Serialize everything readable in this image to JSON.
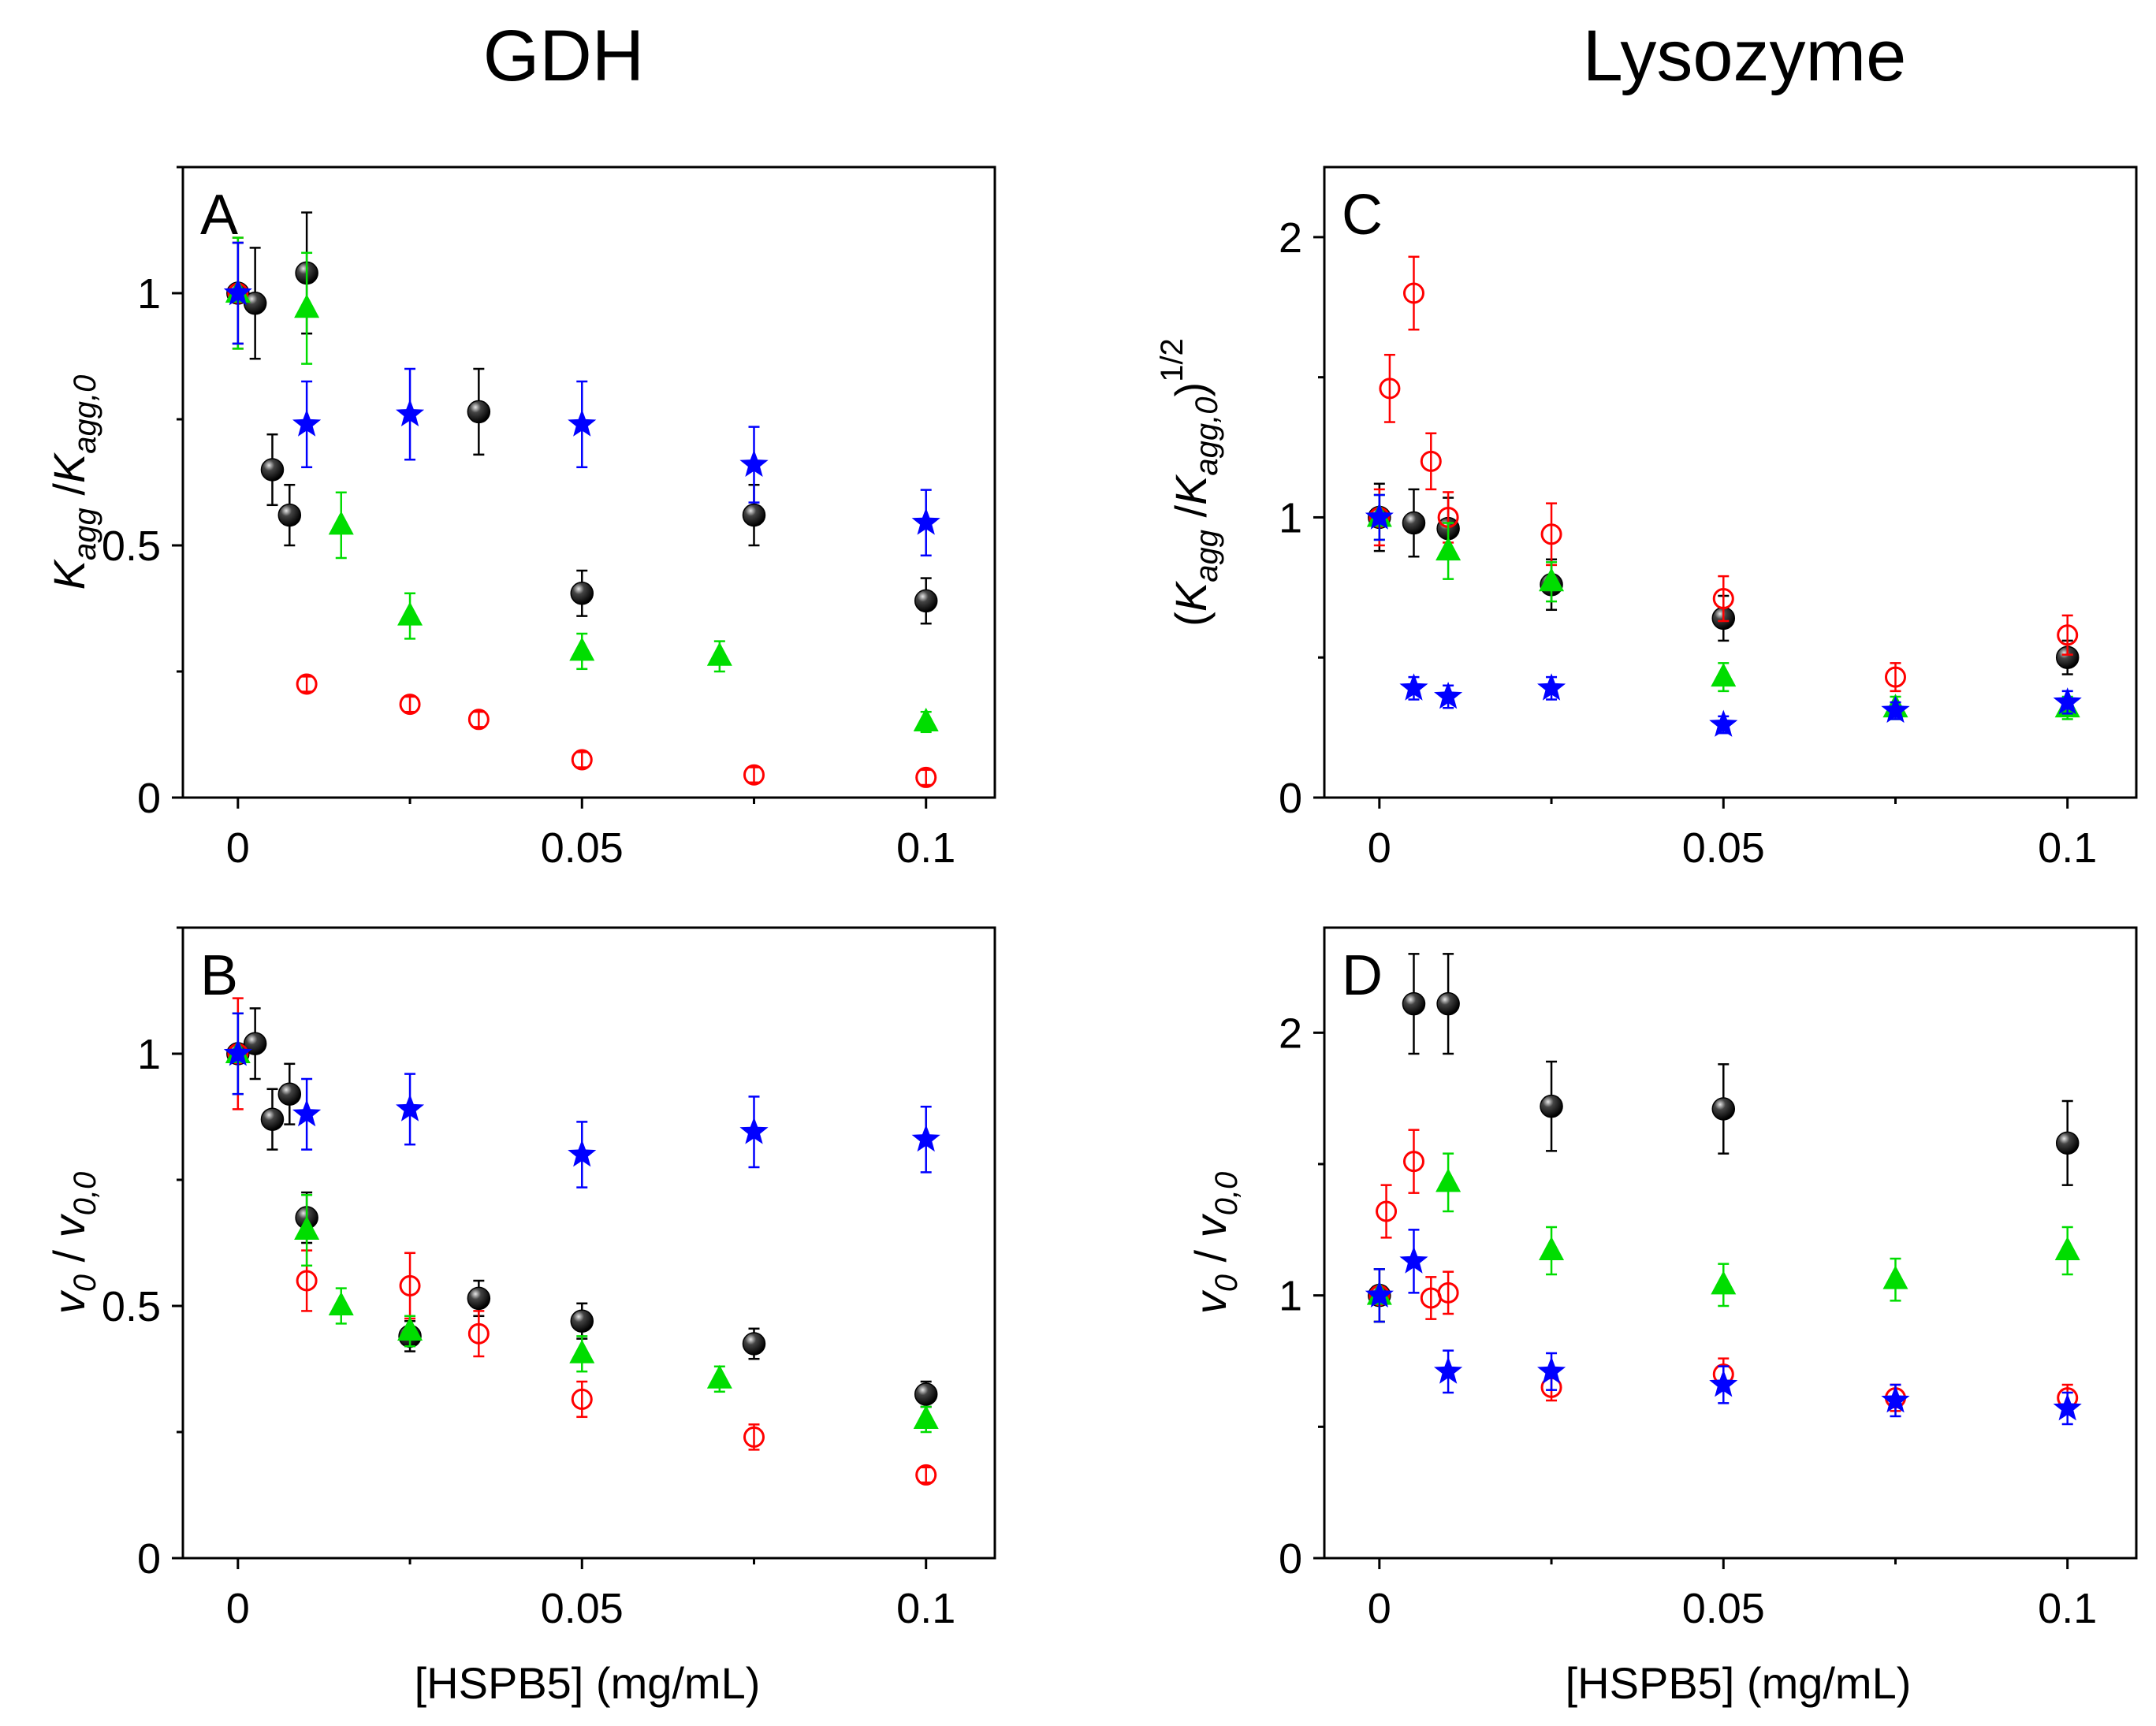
{
  "figure": {
    "col_titles": [
      "GDH",
      "Lysozyme"
    ],
    "x_label": "[HSPB5] (mg/mL)"
  },
  "chart_data": [
    {
      "id": "A",
      "type": "scatter",
      "title": "A",
      "xlabel": "[HSPB5] (mg/mL)",
      "ylabel": "Kagg / Kagg,0",
      "ylabel_parts": {
        "main": "K",
        "sub": "agg",
        "sep": " /",
        "main2": "K",
        "sub2": "agg,0"
      },
      "xlim": [
        -0.008,
        0.11
      ],
      "ylim": [
        0,
        1.25
      ],
      "xticks": [
        0,
        0.05,
        0.1
      ],
      "xtick_labels": [
        "0",
        "0.05",
        "0.1"
      ],
      "yticks": [
        0,
        0.5,
        1
      ],
      "ytick_labels": [
        "0",
        "0.5",
        "1"
      ],
      "series": [
        {
          "name": "black",
          "marker": "sphere",
          "color": "#000000",
          "points": [
            {
              "x": 0,
              "y": 1.0,
              "err": 0.1
            },
            {
              "x": 0.0025,
              "y": 0.98,
              "err": 0.11
            },
            {
              "x": 0.005,
              "y": 0.65,
              "err": 0.07
            },
            {
              "x": 0.0075,
              "y": 0.56,
              "err": 0.06
            },
            {
              "x": 0.01,
              "y": 1.04,
              "err": 0.12
            },
            {
              "x": 0.035,
              "y": 0.765,
              "err": 0.085
            },
            {
              "x": 0.05,
              "y": 0.405,
              "err": 0.045
            },
            {
              "x": 0.075,
              "y": 0.56,
              "err": 0.06
            },
            {
              "x": 0.1,
              "y": 0.39,
              "err": 0.045
            }
          ]
        },
        {
          "name": "red",
          "marker": "open-circle",
          "color": "#ff0000",
          "points": [
            {
              "x": 0,
              "y": 1.0,
              "err": 0.11
            },
            {
              "x": 0.01,
              "y": 0.225,
              "err": 0.015
            },
            {
              "x": 0.025,
              "y": 0.185,
              "err": 0.015
            },
            {
              "x": 0.035,
              "y": 0.155,
              "err": 0.015
            },
            {
              "x": 0.05,
              "y": 0.075,
              "err": 0.015
            },
            {
              "x": 0.075,
              "y": 0.045,
              "err": 0.015
            },
            {
              "x": 0.1,
              "y": 0.04,
              "err": 0.015
            }
          ]
        },
        {
          "name": "green",
          "marker": "triangle",
          "color": "#00dd00",
          "points": [
            {
              "x": 0,
              "y": 1.0,
              "err": 0.11
            },
            {
              "x": 0.01,
              "y": 0.97,
              "err": 0.11
            },
            {
              "x": 0.015,
              "y": 0.54,
              "err": 0.065
            },
            {
              "x": 0.025,
              "y": 0.36,
              "err": 0.045
            },
            {
              "x": 0.05,
              "y": 0.29,
              "err": 0.035
            },
            {
              "x": 0.07,
              "y": 0.28,
              "err": 0.03
            },
            {
              "x": 0.1,
              "y": 0.15,
              "err": 0.02
            }
          ]
        },
        {
          "name": "blue",
          "marker": "star",
          "color": "#0000ff",
          "points": [
            {
              "x": 0,
              "y": 1.0,
              "err": 0.1
            },
            {
              "x": 0.01,
              "y": 0.74,
              "err": 0.085
            },
            {
              "x": 0.025,
              "y": 0.76,
              "err": 0.09
            },
            {
              "x": 0.05,
              "y": 0.74,
              "err": 0.085
            },
            {
              "x": 0.075,
              "y": 0.66,
              "err": 0.075
            },
            {
              "x": 0.1,
              "y": 0.545,
              "err": 0.065
            }
          ]
        }
      ]
    },
    {
      "id": "B",
      "type": "scatter",
      "title": "B",
      "xlabel": "[HSPB5] (mg/mL)",
      "ylabel": "v0 / v0,0",
      "ylabel_parts": {
        "main": "v",
        "sub": "0",
        "sep": " / ",
        "main2": "v",
        "sub2": "0,0"
      },
      "xlim": [
        -0.008,
        0.11
      ],
      "ylim": [
        0,
        1.25
      ],
      "xticks": [
        0,
        0.05,
        0.1
      ],
      "xtick_labels": [
        "0",
        "0.05",
        "0.1"
      ],
      "yticks": [
        0,
        0.5,
        1
      ],
      "ytick_labels": [
        "0",
        "0.5",
        "1"
      ],
      "series": [
        {
          "name": "black",
          "marker": "sphere",
          "color": "#000000",
          "points": [
            {
              "x": 0,
              "y": 1.0,
              "err": 0.08
            },
            {
              "x": 0.0025,
              "y": 1.02,
              "err": 0.07
            },
            {
              "x": 0.005,
              "y": 0.87,
              "err": 0.06
            },
            {
              "x": 0.0075,
              "y": 0.92,
              "err": 0.06
            },
            {
              "x": 0.01,
              "y": 0.675,
              "err": 0.05
            },
            {
              "x": 0.025,
              "y": 0.44,
              "err": 0.03
            },
            {
              "x": 0.035,
              "y": 0.515,
              "err": 0.035
            },
            {
              "x": 0.05,
              "y": 0.47,
              "err": 0.035
            },
            {
              "x": 0.075,
              "y": 0.425,
              "err": 0.03
            },
            {
              "x": 0.1,
              "y": 0.325,
              "err": 0.025
            }
          ]
        },
        {
          "name": "red",
          "marker": "open-circle",
          "color": "#ff0000",
          "points": [
            {
              "x": 0,
              "y": 1.0,
              "err": 0.11
            },
            {
              "x": 0.01,
              "y": 0.55,
              "err": 0.06
            },
            {
              "x": 0.025,
              "y": 0.54,
              "err": 0.065
            },
            {
              "x": 0.035,
              "y": 0.445,
              "err": 0.045
            },
            {
              "x": 0.05,
              "y": 0.315,
              "err": 0.035
            },
            {
              "x": 0.075,
              "y": 0.24,
              "err": 0.025
            },
            {
              "x": 0.1,
              "y": 0.165,
              "err": 0.015
            }
          ]
        },
        {
          "name": "green",
          "marker": "triangle",
          "color": "#00dd00",
          "points": [
            {
              "x": 0,
              "y": 1.0,
              "err": 0.08
            },
            {
              "x": 0.01,
              "y": 0.65,
              "err": 0.07
            },
            {
              "x": 0.015,
              "y": 0.5,
              "err": 0.035
            },
            {
              "x": 0.025,
              "y": 0.45,
              "err": 0.03
            },
            {
              "x": 0.05,
              "y": 0.405,
              "err": 0.035
            },
            {
              "x": 0.07,
              "y": 0.355,
              "err": 0.025
            },
            {
              "x": 0.1,
              "y": 0.275,
              "err": 0.025
            }
          ]
        },
        {
          "name": "blue",
          "marker": "star",
          "color": "#0000ff",
          "points": [
            {
              "x": 0,
              "y": 1.0,
              "err": 0.08
            },
            {
              "x": 0.01,
              "y": 0.88,
              "err": 0.07
            },
            {
              "x": 0.025,
              "y": 0.89,
              "err": 0.07
            },
            {
              "x": 0.05,
              "y": 0.8,
              "err": 0.065
            },
            {
              "x": 0.075,
              "y": 0.845,
              "err": 0.07
            },
            {
              "x": 0.1,
              "y": 0.83,
              "err": 0.065
            }
          ]
        }
      ]
    },
    {
      "id": "C",
      "type": "scatter",
      "title": "C",
      "xlabel": "[HSPB5] (mg/mL)",
      "ylabel": "(Kagg / Kagg,0)^1/2",
      "ylabel_parts": {
        "open": "(",
        "main": "K",
        "sub": "agg",
        "sep": " /",
        "main2": "K",
        "sub2": "agg,0",
        "close": ")",
        "sup": "1/2"
      },
      "xlim": [
        -0.008,
        0.11
      ],
      "ylim": [
        0,
        2.25
      ],
      "xticks": [
        0,
        0.05,
        0.1
      ],
      "xtick_labels": [
        "0",
        "0.05",
        "0.1"
      ],
      "yticks": [
        0,
        1,
        2
      ],
      "ytick_labels": [
        "0",
        "1",
        "2"
      ],
      "series": [
        {
          "name": "black",
          "marker": "sphere",
          "color": "#000000",
          "points": [
            {
              "x": 0,
              "y": 1.0,
              "err": 0.12
            },
            {
              "x": 0.005,
              "y": 0.98,
              "err": 0.12
            },
            {
              "x": 0.01,
              "y": 0.96,
              "err": 0.11
            },
            {
              "x": 0.025,
              "y": 0.76,
              "err": 0.09
            },
            {
              "x": 0.05,
              "y": 0.64,
              "err": 0.08
            },
            {
              "x": 0.1,
              "y": 0.5,
              "err": 0.06
            }
          ]
        },
        {
          "name": "red",
          "marker": "open-circle",
          "color": "#ff0000",
          "points": [
            {
              "x": 0,
              "y": 1.0,
              "err": 0.1
            },
            {
              "x": 0.0015,
              "y": 1.46,
              "err": 0.12
            },
            {
              "x": 0.005,
              "y": 1.8,
              "err": 0.13
            },
            {
              "x": 0.0075,
              "y": 1.2,
              "err": 0.1
            },
            {
              "x": 0.01,
              "y": 1.0,
              "err": 0.09
            },
            {
              "x": 0.025,
              "y": 0.94,
              "err": 0.11
            },
            {
              "x": 0.05,
              "y": 0.71,
              "err": 0.08
            },
            {
              "x": 0.075,
              "y": 0.43,
              "err": 0.05
            },
            {
              "x": 0.1,
              "y": 0.58,
              "err": 0.07
            }
          ]
        },
        {
          "name": "green",
          "marker": "triangle",
          "color": "#00dd00",
          "points": [
            {
              "x": 0,
              "y": 1.0,
              "err": 0.08
            },
            {
              "x": 0.01,
              "y": 0.88,
              "err": 0.1
            },
            {
              "x": 0.025,
              "y": 0.77,
              "err": 0.07
            },
            {
              "x": 0.05,
              "y": 0.43,
              "err": 0.05
            },
            {
              "x": 0.075,
              "y": 0.32,
              "err": 0.04
            },
            {
              "x": 0.1,
              "y": 0.32,
              "err": 0.04
            }
          ]
        },
        {
          "name": "blue",
          "marker": "star",
          "color": "#0000ff",
          "points": [
            {
              "x": 0,
              "y": 1.0,
              "err": 0.08
            },
            {
              "x": 0.005,
              "y": 0.39,
              "err": 0.04
            },
            {
              "x": 0.01,
              "y": 0.36,
              "err": 0.04
            },
            {
              "x": 0.025,
              "y": 0.39,
              "err": 0.04
            },
            {
              "x": 0.05,
              "y": 0.26,
              "err": 0.03
            },
            {
              "x": 0.075,
              "y": 0.31,
              "err": 0.03
            },
            {
              "x": 0.1,
              "y": 0.34,
              "err": 0.04
            }
          ]
        }
      ]
    },
    {
      "id": "D",
      "type": "scatter",
      "title": "D",
      "xlabel": "[HSPB5] (mg/mL)",
      "ylabel": "v0 / v0,0",
      "ylabel_parts": {
        "main": "v",
        "sub": "0",
        "sep": " / ",
        "main2": "v",
        "sub2": "0,0"
      },
      "xlim": [
        -0.008,
        0.11
      ],
      "ylim": [
        0,
        2.4
      ],
      "xticks": [
        0,
        0.05,
        0.1
      ],
      "xtick_labels": [
        "0",
        "0.05",
        "0.1"
      ],
      "yticks": [
        0,
        1,
        2
      ],
      "ytick_labels": [
        "0",
        "1",
        "2"
      ],
      "series": [
        {
          "name": "black",
          "marker": "sphere",
          "color": "#000000",
          "points": [
            {
              "x": 0,
              "y": 1.0,
              "err": 0.1
            },
            {
              "x": 0.005,
              "y": 2.11,
              "err": 0.19
            },
            {
              "x": 0.01,
              "y": 2.11,
              "err": 0.19
            },
            {
              "x": 0.025,
              "y": 1.72,
              "err": 0.17
            },
            {
              "x": 0.05,
              "y": 1.71,
              "err": 0.17
            },
            {
              "x": 0.1,
              "y": 1.58,
              "err": 0.16
            }
          ]
        },
        {
          "name": "red",
          "marker": "open-circle",
          "color": "#ff0000",
          "points": [
            {
              "x": 0,
              "y": 1.0,
              "err": 0.1
            },
            {
              "x": 0.001,
              "y": 1.32,
              "err": 0.1
            },
            {
              "x": 0.005,
              "y": 1.51,
              "err": 0.12
            },
            {
              "x": 0.0075,
              "y": 0.99,
              "err": 0.08
            },
            {
              "x": 0.01,
              "y": 1.01,
              "err": 0.08
            },
            {
              "x": 0.025,
              "y": 0.65,
              "err": 0.05
            },
            {
              "x": 0.05,
              "y": 0.7,
              "err": 0.06
            },
            {
              "x": 0.075,
              "y": 0.61,
              "err": 0.05
            },
            {
              "x": 0.1,
              "y": 0.61,
              "err": 0.05
            }
          ]
        },
        {
          "name": "green",
          "marker": "triangle",
          "color": "#00dd00",
          "points": [
            {
              "x": 0,
              "y": 1.0,
              "err": 0.1
            },
            {
              "x": 0.01,
              "y": 1.43,
              "err": 0.11
            },
            {
              "x": 0.025,
              "y": 1.17,
              "err": 0.09
            },
            {
              "x": 0.05,
              "y": 1.04,
              "err": 0.08
            },
            {
              "x": 0.075,
              "y": 1.06,
              "err": 0.08
            },
            {
              "x": 0.1,
              "y": 1.17,
              "err": 0.09
            }
          ]
        },
        {
          "name": "blue",
          "marker": "star",
          "color": "#0000ff",
          "points": [
            {
              "x": 0,
              "y": 1.0,
              "err": 0.1
            },
            {
              "x": 0.005,
              "y": 1.13,
              "err": 0.12
            },
            {
              "x": 0.01,
              "y": 0.71,
              "err": 0.08
            },
            {
              "x": 0.025,
              "y": 0.71,
              "err": 0.07
            },
            {
              "x": 0.05,
              "y": 0.66,
              "err": 0.07
            },
            {
              "x": 0.075,
              "y": 0.6,
              "err": 0.06
            },
            {
              "x": 0.1,
              "y": 0.57,
              "err": 0.06
            }
          ]
        }
      ]
    }
  ]
}
